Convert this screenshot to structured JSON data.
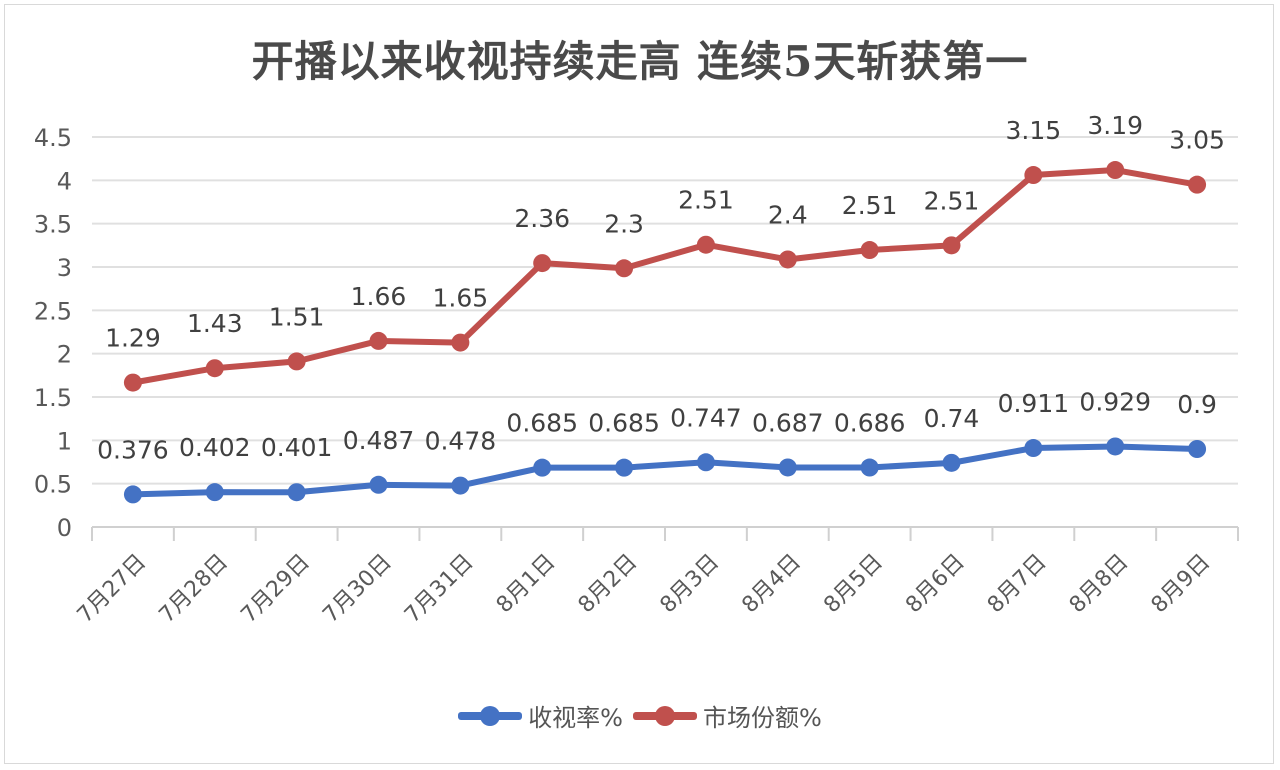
{
  "chart_data": {
    "type": "line",
    "stacked": true,
    "title": "开播以来收视持续走高 连续5天斩获第一",
    "xlabel": "",
    "ylabel": "",
    "ylim": [
      0,
      4.5
    ],
    "yticks": [
      "0",
      "0.5",
      "1",
      "1.5",
      "2",
      "2.5",
      "3",
      "3.5",
      "4",
      "4.5"
    ],
    "grid": true,
    "legend_position": "bottom",
    "categories": [
      "7月27日",
      "7月28日",
      "7月29日",
      "7月30日",
      "7月31日",
      "8月1日",
      "8月2日",
      "8月3日",
      "8月4日",
      "8月5日",
      "8月6日",
      "8月7日",
      "8月8日",
      "8月9日"
    ],
    "series": [
      {
        "name": "收视率%",
        "color": "#4472c4",
        "values": [
          0.376,
          0.402,
          0.401,
          0.487,
          0.478,
          0.685,
          0.685,
          0.747,
          0.687,
          0.686,
          0.74,
          0.911,
          0.929,
          0.9
        ],
        "labels": [
          "0.376",
          "0.402",
          "0.401",
          "0.487",
          "0.478",
          "0.685",
          "0.685",
          "0.747",
          "0.687",
          "0.686",
          "0.74",
          "0.911",
          "0.929",
          "0.9"
        ]
      },
      {
        "name": "市场份额%",
        "color": "#c0504d",
        "values": [
          1.29,
          1.43,
          1.51,
          1.66,
          1.65,
          2.36,
          2.3,
          2.51,
          2.4,
          2.51,
          2.51,
          3.15,
          3.19,
          3.05
        ],
        "labels": [
          "1.29",
          "1.43",
          "1.51",
          "1.66",
          "1.65",
          "2.36",
          "2.3",
          "2.51",
          "2.4",
          "2.51",
          "2.51",
          "3.15",
          "3.19",
          "3.05"
        ]
      }
    ]
  }
}
